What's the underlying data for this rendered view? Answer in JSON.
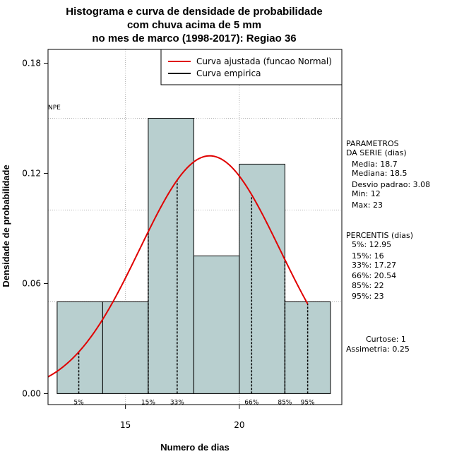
{
  "chart_data": {
    "type": "bar",
    "title_lines": [
      "Histograma e curva de densidade de probabilidade",
      "com chuva acima de 5 mm",
      "no mes de marco (1998-2017): Regiao 36"
    ],
    "xlabel": "Numero de dias",
    "ylabel": "Densidade de probabilidade",
    "xlim": [
      11.6,
      24.5
    ],
    "ylim": [
      -0.006,
      0.1875
    ],
    "x_ticks": [
      15,
      20
    ],
    "y_ticks": [
      0.0,
      0.06,
      0.12,
      0.18
    ],
    "y_tick_labels": [
      "0.00",
      "0.06",
      "0.12",
      "0.18"
    ],
    "grid": true,
    "grid_x": [
      15,
      20
    ],
    "grid_y": [
      0.05,
      0.1,
      0.15
    ],
    "bins": [
      {
        "start": 12,
        "end": 14,
        "density": 0.05
      },
      {
        "start": 14,
        "end": 16,
        "density": 0.05
      },
      {
        "start": 16,
        "end": 18,
        "density": 0.15
      },
      {
        "start": 18,
        "end": 20,
        "density": 0.075
      },
      {
        "start": 20,
        "end": 22,
        "density": 0.125
      },
      {
        "start": 22,
        "end": 24,
        "density": 0.05
      }
    ],
    "bar_color": "#b8cfcf",
    "normal_curve": {
      "mean": 18.7,
      "sd": 3.08,
      "x_range": [
        11.6,
        23.0
      ],
      "color": "#e00000"
    },
    "percentile_lines": [
      {
        "label": "5%",
        "x": 12.95
      },
      {
        "label": "15%",
        "x": 16
      },
      {
        "label": "33%",
        "x": 17.27
      },
      {
        "label": "66%",
        "x": 20.54
      },
      {
        "label": "85%",
        "x": 22
      },
      {
        "label": "95%",
        "x": 23
      }
    ],
    "npe_label": "NPE",
    "legend": {
      "position": "top-right",
      "entries": [
        {
          "label": "Curva ajustada (funcao Normal)",
          "color": "#e00000"
        },
        {
          "label": "Curva empirica",
          "color": "#000000"
        }
      ]
    }
  },
  "side_panel": {
    "params_title": [
      "PARAMETROS",
      "DA SERIE (dias)"
    ],
    "params": [
      "Media: 18.7",
      "Mediana: 18.5",
      "Desvio padrao: 3.08",
      "Min: 12",
      "Max: 23"
    ],
    "percentis_title": "PERCENTIS (dias)",
    "percentis": [
      "5%: 12.95",
      "15%: 16",
      "33%: 17.27",
      "66%: 20.54",
      "85%: 22",
      "95%: 23"
    ],
    "curtose": "Curtose: 1",
    "assimetria": "Assimetria: 0.25"
  }
}
